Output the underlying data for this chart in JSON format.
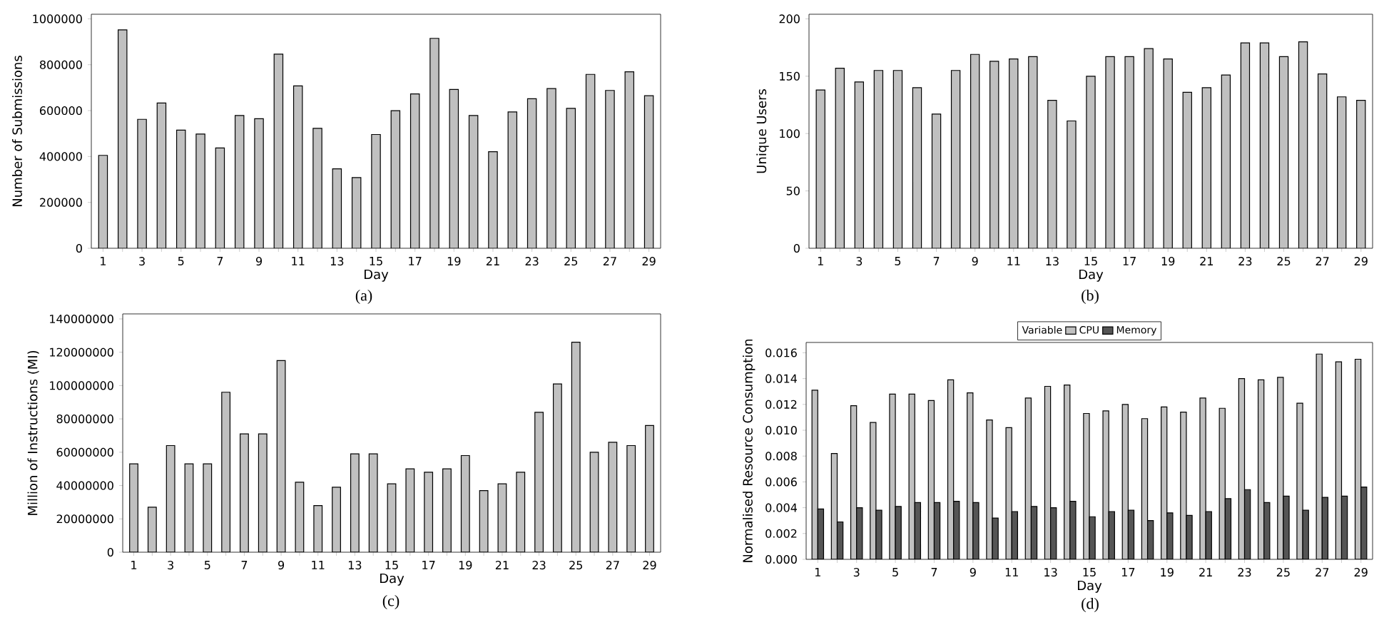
{
  "chart_data": [
    {
      "type": "bar",
      "categories": [
        "1",
        null,
        "3",
        null,
        "5",
        null,
        "7",
        null,
        "9",
        null,
        "11",
        null,
        "13",
        null,
        "15",
        null,
        "17",
        null,
        "19",
        null,
        "21",
        null,
        "23",
        null,
        "25",
        null,
        "27",
        null,
        "29"
      ],
      "xlabel": "Day",
      "ylabel": "Number of Submissions",
      "color": "#c0c0c0",
      "values": [
        405000,
        952000,
        562000,
        633000,
        515000,
        498000,
        437000,
        579000,
        565000,
        846000,
        708000,
        523000,
        346000,
        308000,
        496000,
        600000,
        673000,
        915000,
        692000,
        579000,
        421000,
        594000,
        652000,
        696000,
        610000,
        758000,
        688000,
        769000,
        665000
      ],
      "ylim": [
        0,
        1020000
      ],
      "yticks": [
        0,
        200000,
        400000,
        600000,
        800000,
        1000000
      ],
      "annotations": [
        "(a)"
      ]
    },
    {
      "type": "bar",
      "categories": [
        "1",
        null,
        "3",
        null,
        "5",
        null,
        "7",
        null,
        "9",
        null,
        "11",
        null,
        "13",
        null,
        "15",
        null,
        "17",
        null,
        "19",
        null,
        "21",
        null,
        "23",
        null,
        "25",
        null,
        "27",
        null,
        "29"
      ],
      "xlabel": "Day",
      "ylabel": "Unique Users",
      "color": "#c0c0c0",
      "values": [
        138,
        157,
        145,
        155,
        155,
        140,
        117,
        155,
        169,
        163,
        165,
        167,
        129,
        111,
        150,
        167,
        167,
        174,
        165,
        136,
        140,
        151,
        179,
        179,
        167,
        180,
        152,
        132,
        129
      ],
      "ylim": [
        0,
        204
      ],
      "yticks": [
        0,
        50,
        100,
        150,
        200
      ],
      "annotations": [
        "(b)"
      ]
    },
    {
      "type": "bar",
      "categories": [
        "1",
        null,
        "3",
        null,
        "5",
        null,
        "7",
        null,
        "9",
        null,
        "11",
        null,
        "13",
        null,
        "15",
        null,
        "17",
        null,
        "19",
        null,
        "21",
        null,
        "23",
        null,
        "25",
        null,
        "27",
        null,
        "29"
      ],
      "xlabel": "Day",
      "ylabel": "Million of Instructions (MI)",
      "color": "#c0c0c0",
      "values": [
        53000000,
        27000000,
        64000000,
        53000000,
        53000000,
        96000000,
        71000000,
        71000000,
        115000000,
        42000000,
        28000000,
        39000000,
        59000000,
        59000000,
        41000000,
        50000000,
        48000000,
        50000000,
        58000000,
        37000000,
        41000000,
        48000000,
        84000000,
        101000000,
        126000000,
        60000000,
        66000000,
        64000000,
        76000000
      ],
      "ylim": [
        0,
        143000000
      ],
      "yticks": [
        0,
        20000000,
        40000000,
        60000000,
        80000000,
        100000000,
        120000000,
        140000000
      ],
      "annotations": [
        "(c)"
      ]
    },
    {
      "type": "bar",
      "categories": [
        "1",
        null,
        "3",
        null,
        "5",
        null,
        "7",
        null,
        "9",
        null,
        "11",
        null,
        "13",
        null,
        "15",
        null,
        "17",
        null,
        "19",
        null,
        "21",
        null,
        "23",
        null,
        "25",
        null,
        "27",
        null,
        "29"
      ],
      "xlabel": "Day",
      "ylabel": "Normalised Resource Consumption",
      "legend_title": "Variable",
      "legend": "top",
      "series": [
        {
          "name": "CPU",
          "color": "#c0c0c0",
          "values": [
            0.0131,
            0.0082,
            0.0119,
            0.0106,
            0.0128,
            0.0128,
            0.0123,
            0.0139,
            0.0129,
            0.0108,
            0.0102,
            0.0125,
            0.0134,
            0.0135,
            0.0113,
            0.0115,
            0.012,
            0.0109,
            0.0118,
            0.0114,
            0.0125,
            0.0117,
            0.014,
            0.0139,
            0.0141,
            0.0121,
            0.0159,
            0.0153,
            0.0155
          ]
        },
        {
          "name": "Memory",
          "color": "#555555",
          "values": [
            0.0039,
            0.0029,
            0.004,
            0.0038,
            0.0041,
            0.0044,
            0.0044,
            0.0045,
            0.0044,
            0.0032,
            0.0037,
            0.0041,
            0.004,
            0.0045,
            0.0033,
            0.0037,
            0.0038,
            0.003,
            0.0036,
            0.0034,
            0.0037,
            0.0047,
            0.0054,
            0.0044,
            0.0049,
            0.0038,
            0.0048,
            0.0049,
            0.0056
          ]
        }
      ],
      "ylim": [
        0,
        0.0168
      ],
      "yticks": [
        {
          "value": 0,
          "label": "0.000"
        },
        {
          "value": 0.002,
          "label": "0.002"
        },
        {
          "value": 0.004,
          "label": "0.004"
        },
        {
          "value": 0.006,
          "label": "0.006"
        },
        {
          "value": 0.008,
          "label": "0.008"
        },
        {
          "value": 0.01,
          "label": "0.010"
        },
        {
          "value": 0.012,
          "label": "0.012"
        },
        {
          "value": 0.014,
          "label": "0.014"
        },
        {
          "value": 0.016,
          "label": "0.016"
        }
      ],
      "annotations": [
        "(d)"
      ]
    }
  ]
}
